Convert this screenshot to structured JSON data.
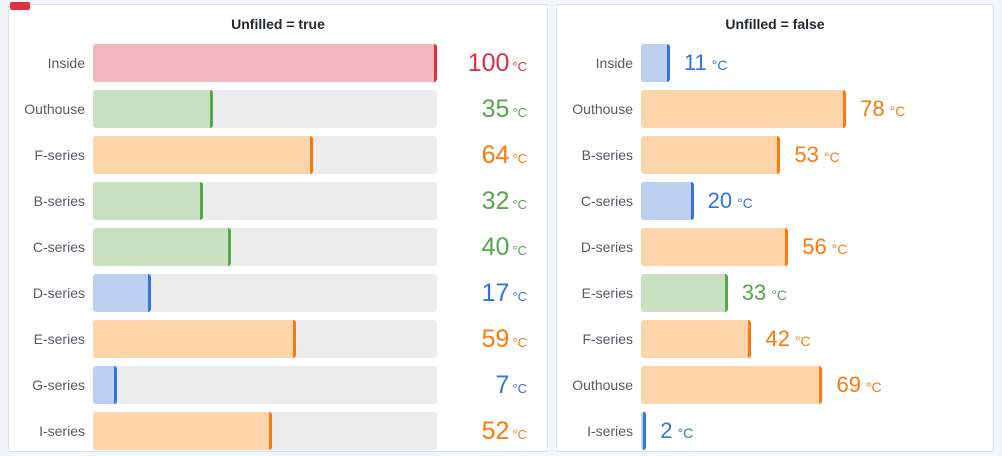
{
  "page": {
    "background": "#f4f5f9",
    "corner_marker_color": "#e02f44"
  },
  "colors": {
    "red": {
      "line": "#e02f44",
      "fill": "#f1b7bf"
    },
    "green": {
      "line": "#56a64b",
      "fill": "#c7e1c1"
    },
    "orange": {
      "line": "#ff780a",
      "fill": "#fcd5ab"
    },
    "blue": {
      "line": "#3274d9",
      "fill": "#bcd0f0"
    },
    "track": "#ececec"
  },
  "panels": [
    {
      "title": "Unfilled = true",
      "unfilled": true,
      "unit": "°C",
      "max": 100,
      "rows": [
        {
          "label": "Inside",
          "value": 100,
          "color": "red"
        },
        {
          "label": "Outhouse",
          "value": 35,
          "color": "green"
        },
        {
          "label": "F-series",
          "value": 64,
          "color": "orange"
        },
        {
          "label": "B-series",
          "value": 32,
          "color": "green"
        },
        {
          "label": "C-series",
          "value": 40,
          "color": "green"
        },
        {
          "label": "D-series",
          "value": 17,
          "color": "blue"
        },
        {
          "label": "E-series",
          "value": 59,
          "color": "orange"
        },
        {
          "label": "G-series",
          "value": 7,
          "color": "blue"
        },
        {
          "label": "I-series",
          "value": 52,
          "color": "orange"
        }
      ]
    },
    {
      "title": "Unfilled = false",
      "unfilled": false,
      "unit": "°C",
      "max": 100,
      "rows": [
        {
          "label": "Inside",
          "value": 11,
          "color": "blue"
        },
        {
          "label": "Outhouse",
          "value": 78,
          "color": "orange"
        },
        {
          "label": "B-series",
          "value": 53,
          "color": "orange"
        },
        {
          "label": "C-series",
          "value": 20,
          "color": "blue"
        },
        {
          "label": "D-series",
          "value": 56,
          "color": "orange"
        },
        {
          "label": "E-series",
          "value": 33,
          "color": "green"
        },
        {
          "label": "F-series",
          "value": 42,
          "color": "orange"
        },
        {
          "label": "Outhouse",
          "value": 69,
          "color": "orange"
        },
        {
          "label": "I-series",
          "value": 2,
          "color": "blue"
        }
      ]
    }
  ],
  "chart_data": [
    {
      "type": "bar",
      "orientation": "horizontal",
      "title": "Unfilled = true",
      "categories": [
        "Inside",
        "Outhouse",
        "F-series",
        "B-series",
        "C-series",
        "D-series",
        "E-series",
        "G-series",
        "I-series"
      ],
      "values": [
        100,
        35,
        64,
        32,
        40,
        17,
        59,
        7,
        52
      ],
      "bar_colors": [
        "red",
        "green",
        "orange",
        "green",
        "green",
        "blue",
        "orange",
        "blue",
        "orange"
      ],
      "unit": "°C",
      "xlim": [
        0,
        100
      ],
      "unfilled_track": true,
      "value_labels": [
        "100 °C",
        "35 °C",
        "64 °C",
        "32 °C",
        "40 °C",
        "17 °C",
        "59 °C",
        "7 °C",
        "52 °C"
      ]
    },
    {
      "type": "bar",
      "orientation": "horizontal",
      "title": "Unfilled = false",
      "categories": [
        "Inside",
        "Outhouse",
        "B-series",
        "C-series",
        "D-series",
        "E-series",
        "F-series",
        "Outhouse",
        "I-series"
      ],
      "values": [
        11,
        78,
        53,
        20,
        56,
        33,
        42,
        69,
        2
      ],
      "bar_colors": [
        "blue",
        "orange",
        "orange",
        "blue",
        "orange",
        "green",
        "orange",
        "orange",
        "blue"
      ],
      "unit": "°C",
      "xlim": [
        0,
        100
      ],
      "unfilled_track": false,
      "value_labels": [
        "11 °C",
        "78 °C",
        "53 °C",
        "20 °C",
        "56 °C",
        "33 °C",
        "42 °C",
        "69 °C",
        "2 °C"
      ]
    }
  ]
}
